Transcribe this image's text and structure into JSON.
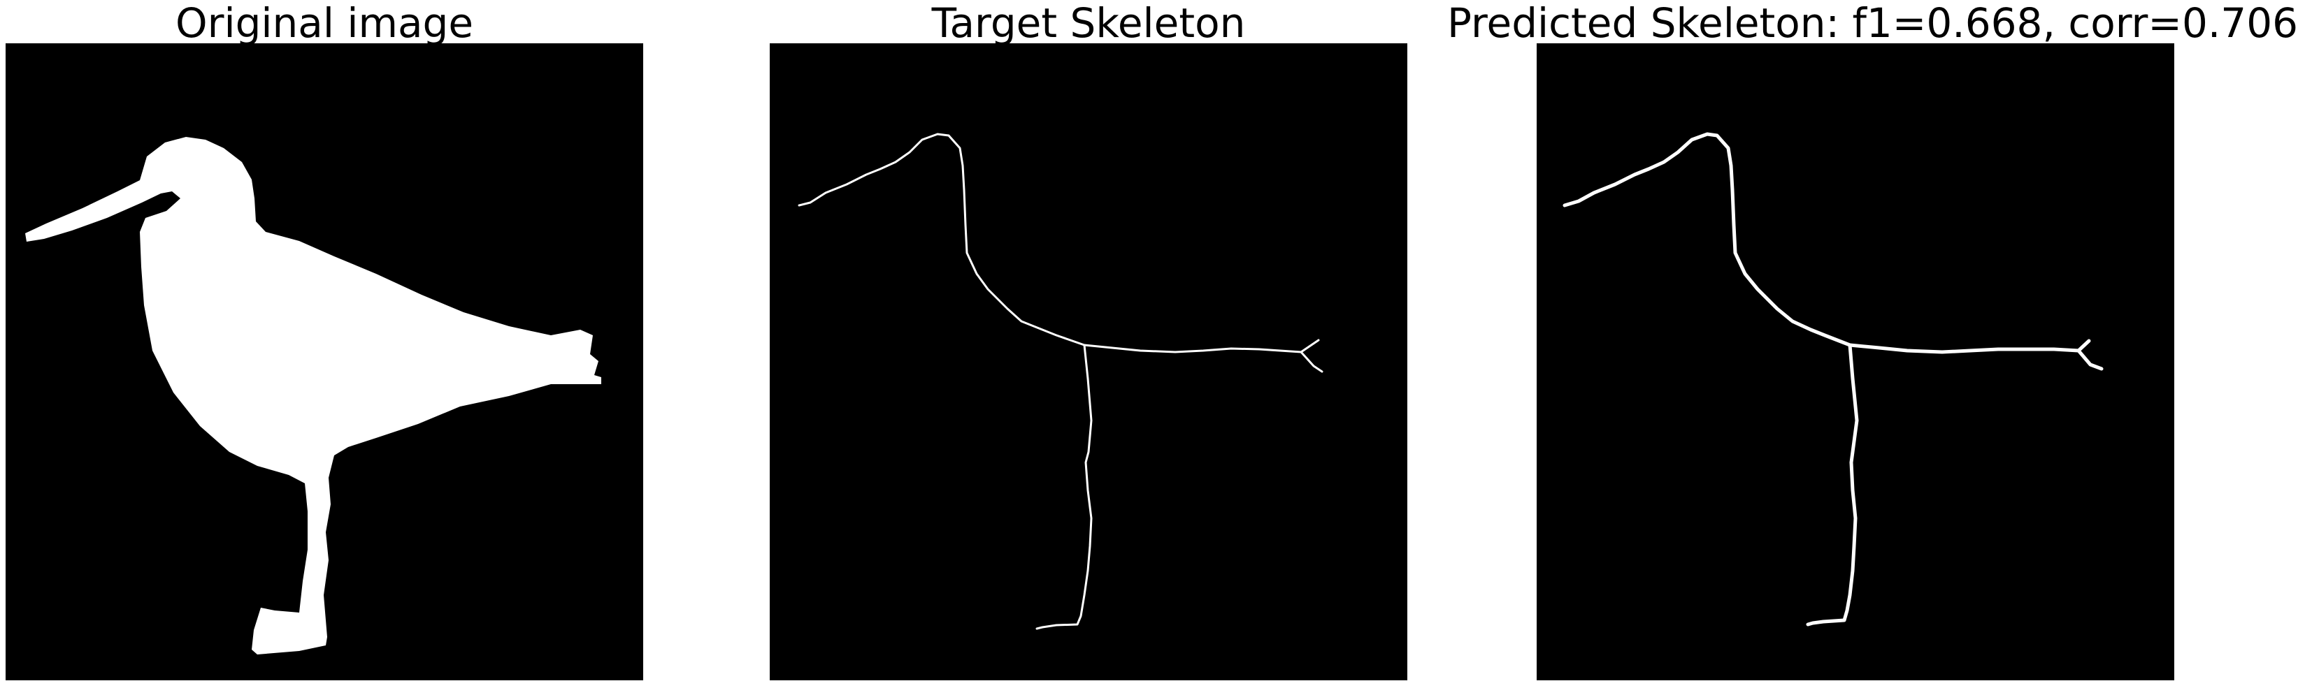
{
  "figure": {
    "panels": [
      {
        "title": "Original image"
      },
      {
        "title": "Target Skeleton"
      },
      {
        "title": "Predicted Skeleton: f1=0.668, corr=0.706"
      }
    ]
  },
  "colors": {
    "background": "#000000",
    "foreground": "#ffffff"
  }
}
